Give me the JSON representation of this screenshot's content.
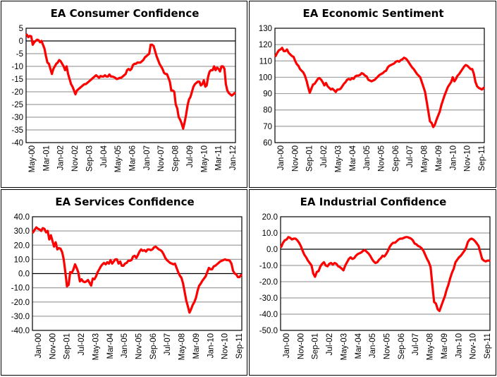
{
  "chart_data": [
    {
      "id": "consumer",
      "type": "line",
      "title": "EA Consumer Confidence",
      "xlabel": "",
      "ylabel": "",
      "ylim": [
        -40,
        5
      ],
      "yticks": [
        5,
        0,
        -5,
        -10,
        -15,
        -20,
        -25,
        -30,
        -35,
        -40
      ],
      "ytick_decimals": 0,
      "xticks": [
        "May-00",
        "Mar-01",
        "Jan-02",
        "Nov-02",
        "Sep-03",
        "Jul-04",
        "May-05",
        "Mar-06",
        "Jan-07",
        "Nov-07",
        "Sep-08",
        "Jul-09",
        "May-10",
        "Mar-11",
        "Jan-12"
      ],
      "grid": true,
      "zero_line": true,
      "line_color": "#ff0000",
      "series": [
        {
          "name": "Consumer Confidence",
          "values": [
            2.5,
            1.5,
            2,
            1.8,
            -1.5,
            -0.5,
            0,
            0.5,
            0.3,
            -0.5,
            0,
            -1.5,
            -3,
            -6,
            -8.5,
            -9,
            -11,
            -13,
            -11,
            -10,
            -9,
            -8.5,
            -7.5,
            -8,
            -9,
            -10,
            -11.5,
            -10,
            -13,
            -15,
            -17,
            -18,
            -19.5,
            -21,
            -19.5,
            -19,
            -18.5,
            -18,
            -17.5,
            -17,
            -17,
            -16.5,
            -16,
            -15.5,
            -15,
            -14.5,
            -14,
            -13.5,
            -14,
            -14.5,
            -13.8,
            -14,
            -14,
            -13.5,
            -14,
            -14,
            -13.2,
            -14,
            -14,
            -14.2,
            -14.5,
            -15,
            -14.8,
            -14.5,
            -14.5,
            -14,
            -13.5,
            -13,
            -11.5,
            -11,
            -11.5,
            -11,
            -9.5,
            -9,
            -9,
            -8.5,
            -8.5,
            -8.5,
            -8,
            -7.5,
            -6.5,
            -6,
            -5.5,
            -5,
            -1.5,
            -1.5,
            -2,
            -4,
            -6,
            -7.5,
            -9,
            -10,
            -11,
            -12.5,
            -13,
            -13,
            -14.5,
            -16,
            -19.5,
            -19.5,
            -20,
            -25,
            -26.5,
            -30,
            -31,
            -32.5,
            -34.5,
            -32,
            -29,
            -25.5,
            -23,
            -22,
            -20,
            -18,
            -17,
            -16.5,
            -16,
            -16,
            -17.5,
            -17,
            -15.5,
            -18,
            -17.5,
            -14,
            -12,
            -11.5,
            -11.5,
            -10,
            -11.5,
            -10.5,
            -11,
            -12,
            -10,
            -10,
            -11,
            -17,
            -19.5,
            -20.5,
            -21,
            -21.5,
            -21,
            -20.5
          ]
        }
      ]
    },
    {
      "id": "economic",
      "type": "line",
      "title": "EA Economic Sentiment",
      "xlabel": "",
      "ylabel": "",
      "ylim": [
        60,
        130
      ],
      "yticks": [
        130,
        120,
        110,
        100,
        90,
        80,
        70,
        60
      ],
      "ytick_decimals": 0,
      "xticks": [
        "Jan-00",
        "Nov-00",
        "Sep-01",
        "Jul-02",
        "May-03",
        "Mar-04",
        "Jan-05",
        "Nov-05",
        "Sep-06",
        "Jul-07",
        "May-08",
        "Mar-09",
        "Jan-10",
        "Nov-10",
        "Sep-11"
      ],
      "grid": true,
      "zero_line": false,
      "line_color": "#ff0000",
      "series": [
        {
          "name": "Economic Sentiment",
          "values": [
            113,
            115,
            116.5,
            117,
            118,
            116,
            116,
            117,
            115,
            114,
            113,
            112.5,
            110,
            108,
            107,
            105,
            104,
            103,
            101,
            98,
            94,
            90.5,
            93,
            95.5,
            96,
            97.5,
            99,
            99.5,
            98.5,
            97,
            95,
            96.5,
            94.5,
            93.5,
            92.5,
            93,
            92,
            91,
            92.5,
            92.5,
            93,
            94.5,
            96,
            97,
            98.5,
            99,
            98.5,
            99.5,
            99,
            100.5,
            101,
            101,
            101.5,
            102.5,
            102,
            101,
            100.5,
            98.5,
            98,
            97.5,
            98,
            98.5,
            99.5,
            100.5,
            101.5,
            102,
            102.5,
            103.5,
            104,
            106,
            107,
            107.5,
            108,
            108.5,
            109.5,
            110,
            109.5,
            110.5,
            111,
            112,
            111.5,
            110.5,
            109,
            107.5,
            106,
            105,
            103.5,
            102,
            101,
            100,
            97,
            94,
            91,
            85,
            79,
            73,
            72,
            69.5,
            71,
            74,
            76.5,
            79,
            83,
            86,
            89,
            91.5,
            94,
            95.5,
            97,
            100,
            97.5,
            99,
            101,
            102,
            103.5,
            105,
            106.5,
            107.5,
            107,
            106,
            105,
            105,
            102,
            97,
            94.5,
            93.5,
            93,
            92.5,
            93.5
          ]
        }
      ]
    },
    {
      "id": "services",
      "type": "line",
      "title": "EA Services Confidence",
      "xlabel": "",
      "ylabel": "",
      "ylim": [
        -40,
        40
      ],
      "yticks": [
        40,
        30,
        20,
        10,
        0,
        -10,
        -20,
        -30,
        -40
      ],
      "ytick_decimals": 1,
      "xticks": [
        "Jan-00",
        "Nov-00",
        "Sep-01",
        "Jul-02",
        "May-03",
        "Mar-04",
        "Jan-05",
        "Nov-05",
        "Sep-06",
        "Jul-07",
        "May-08",
        "Mar-09",
        "Jan-10",
        "Nov-10",
        "Sep-11"
      ],
      "grid": true,
      "zero_line": true,
      "line_color": "#ff0000",
      "series": [
        {
          "name": "Services Confidence",
          "values": [
            29,
            31,
            32.5,
            31.5,
            31,
            30,
            32,
            31.5,
            29,
            30,
            24,
            27,
            23,
            19,
            22,
            17,
            18,
            17.5,
            15,
            10,
            1,
            -9,
            -8,
            1,
            0.5,
            3,
            6.5,
            4,
            1,
            -5.5,
            -4,
            -5.5,
            -6,
            -5.5,
            -4.5,
            -6.5,
            -8.5,
            -3.5,
            -4,
            -2,
            1,
            3,
            5,
            6.5,
            7.5,
            6.5,
            8,
            7,
            9.5,
            7,
            8.5,
            10,
            10,
            7,
            8.5,
            5.5,
            5.5,
            7,
            7.5,
            9,
            9,
            9.5,
            12,
            12.5,
            11,
            13,
            15.5,
            17,
            16,
            16.5,
            15.5,
            17,
            17,
            16.5,
            17,
            18.5,
            19,
            18,
            17,
            16.5,
            15.5,
            13.5,
            11,
            9.5,
            8.5,
            7.5,
            7,
            6.5,
            7,
            4,
            1,
            -1.5,
            -3,
            -7,
            -13,
            -19,
            -23,
            -27.5,
            -25,
            -22,
            -20,
            -17,
            -12,
            -8.5,
            -7,
            -5,
            -3.5,
            -2,
            1,
            4,
            3,
            3,
            5,
            5.5,
            6.5,
            7.5,
            8.5,
            9,
            9.5,
            10,
            9.5,
            9.5,
            9,
            7,
            2,
            0,
            -0.5,
            -2.5,
            -2.5,
            -1
          ]
        }
      ]
    },
    {
      "id": "industrial",
      "type": "line",
      "title": "EA Industrial Confidence",
      "xlabel": "",
      "ylabel": "",
      "ylim": [
        -50,
        20
      ],
      "yticks": [
        20,
        10,
        0,
        -10,
        -20,
        -30,
        -40,
        -50
      ],
      "ytick_decimals": 1,
      "xticks": [
        "Jan-00",
        "Nov-00",
        "Sep-01",
        "Jul-02",
        "May-03",
        "Mar-04",
        "Jan-05",
        "Nov-05",
        "Sep-06",
        "Jul-07",
        "May-08",
        "Mar-09",
        "Jan-10",
        "Nov-10",
        "Sep-11"
      ],
      "grid": true,
      "zero_line": true,
      "line_color": "#ff0000",
      "series": [
        {
          "name": "Industrial Confidence",
          "values": [
            1.5,
            4,
            5.5,
            6,
            7.5,
            7,
            6,
            6.5,
            6.5,
            5.5,
            4,
            2,
            -1,
            -3.5,
            -5,
            -7,
            -8.5,
            -10,
            -15,
            -17,
            -14,
            -13.5,
            -10.5,
            -9,
            -8,
            -10,
            -10.5,
            -9,
            -8.5,
            -9.5,
            -8.5,
            -9,
            -10.5,
            -11,
            -12,
            -13,
            -10,
            -8,
            -6,
            -5,
            -6,
            -5.5,
            -4,
            -3,
            -2.5,
            -2,
            -1,
            -0.5,
            -1.5,
            -2.5,
            -4,
            -6,
            -7.5,
            -8.5,
            -8,
            -6.5,
            -5.5,
            -4,
            -4.5,
            -3,
            -1,
            1.5,
            3,
            4,
            4,
            5,
            6,
            6.5,
            6.5,
            7,
            7.5,
            7.5,
            7,
            6.5,
            5.5,
            3.5,
            3,
            2,
            1.5,
            0.5,
            -1,
            -3.5,
            -6,
            -8,
            -11,
            -22,
            -32.5,
            -33.5,
            -37,
            -38,
            -35,
            -32,
            -29,
            -25,
            -22,
            -18,
            -14.5,
            -12,
            -8,
            -6.5,
            -5,
            -4,
            -2.5,
            -1,
            1,
            4.5,
            6,
            6.5,
            6,
            5,
            3.5,
            2,
            -2,
            -6,
            -7,
            -7.5,
            -7,
            -7
          ]
        }
      ]
    }
  ]
}
